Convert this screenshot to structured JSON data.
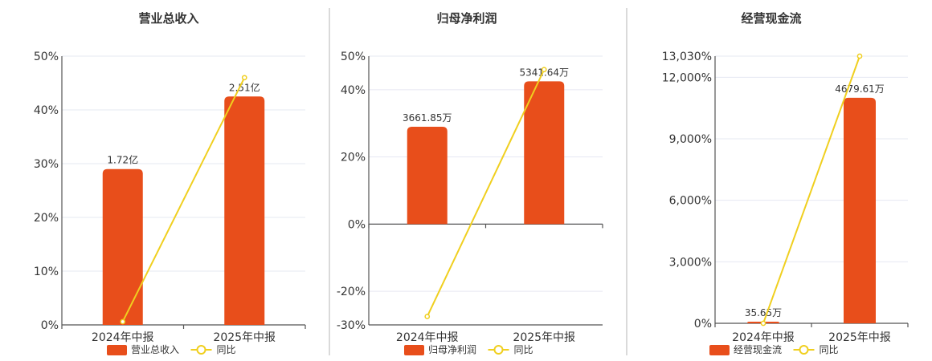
{
  "colors": {
    "bar": "#e84e1b",
    "line": "#f0cf1f",
    "line_marker_fill": "#ffffff"
  },
  "chart_data": [
    {
      "type": "bar",
      "title": "营业总收入",
      "categories": [
        "2024年中报",
        "2025年中报"
      ],
      "series": [
        {
          "name": "营业总收入",
          "type": "bar",
          "values": [
            29,
            42.5
          ],
          "data_labels": [
            "1.72亿",
            "2.51亿"
          ]
        },
        {
          "name": "同比",
          "type": "line",
          "values": [
            0.6,
            46
          ]
        }
      ],
      "yticks": [
        0,
        10,
        20,
        30,
        40,
        50
      ],
      "ytick_labels": [
        "0%",
        "10%",
        "20%",
        "30%",
        "40%",
        "50%"
      ],
      "ylim": [
        0,
        50
      ],
      "grid": true,
      "legend": "bottom"
    },
    {
      "type": "bar",
      "title": "归母净利润",
      "categories": [
        "2024年中报",
        "2025年中报"
      ],
      "series": [
        {
          "name": "归母净利润",
          "type": "bar",
          "values": [
            29,
            42.5
          ],
          "data_labels": [
            "3661.85万",
            "5341.64万"
          ]
        },
        {
          "name": "同比",
          "type": "line",
          "values": [
            -27.5,
            46
          ]
        }
      ],
      "yticks": [
        -30,
        -20,
        0,
        20,
        40,
        50
      ],
      "ytick_labels": [
        "-30%",
        "-20%",
        "0%",
        "20%",
        "40%",
        "50%"
      ],
      "ylim": [
        -30,
        50
      ],
      "grid": true,
      "legend": "bottom"
    },
    {
      "type": "bar",
      "title": "经营现金流",
      "categories": [
        "2024年中报",
        "2025年中报"
      ],
      "series": [
        {
          "name": "经营现金流",
          "type": "bar",
          "values": [
            80,
            11000
          ],
          "data_labels": [
            "35.65万",
            "4679.61万"
          ]
        },
        {
          "name": "同比",
          "type": "line",
          "values": [
            0,
            13030
          ]
        }
      ],
      "yticks": [
        0,
        3000,
        6000,
        9000,
        12000,
        13030
      ],
      "ytick_labels": [
        "0%",
        "3,000%",
        "6,000%",
        "9,000%",
        "12,000%",
        "13,030%"
      ],
      "ylim": [
        0,
        13030
      ],
      "grid": true,
      "legend": "bottom"
    }
  ]
}
